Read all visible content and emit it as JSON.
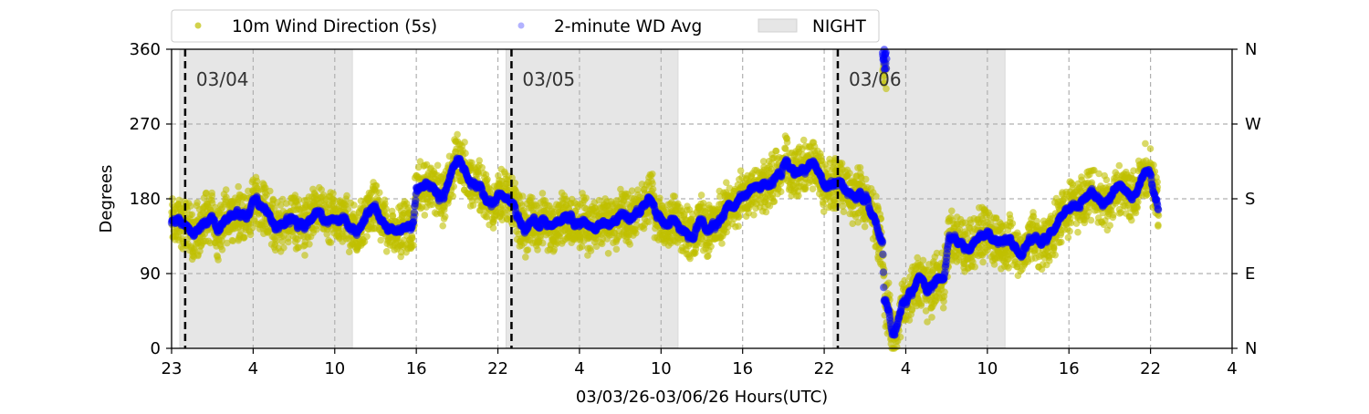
{
  "chart_data": {
    "type": "scatter",
    "xlabel": "03/03/26-03/06/26  Hours(UTC)",
    "ylabel": "Degrees",
    "x_unit": "hours since axis start",
    "xlim": [
      0,
      78
    ],
    "ylim": [
      0,
      360
    ],
    "x_ticks": [
      0,
      6,
      12,
      18,
      24,
      30,
      36,
      42,
      48,
      54,
      60,
      66,
      72,
      78
    ],
    "x_tick_labels": [
      "23",
      "4",
      "10",
      "16",
      "22",
      "4",
      "10",
      "16",
      "22",
      "4",
      "10",
      "16",
      "22",
      "4"
    ],
    "y_ticks": [
      0,
      90,
      180,
      270,
      360
    ],
    "y_tick_labels": [
      "0",
      "90",
      "180",
      "270",
      "360"
    ],
    "y2_tick_labels": [
      "N",
      "E",
      "S",
      "W",
      "N"
    ],
    "grid": true,
    "legend": {
      "placement": "top",
      "entries": [
        {
          "label": "10m Wind Direction (5s)",
          "color": "#bfbf00",
          "kind": "marker"
        },
        {
          "label": "2-minute WD Avg",
          "color": "#0000ff",
          "kind": "marker"
        },
        {
          "label": "NIGHT",
          "color": "#e6e6e6",
          "kind": "patch"
        }
      ]
    },
    "night_periods": [
      [
        0.6,
        13.3
      ],
      [
        24.6,
        37.25
      ],
      [
        48.65,
        61.3
      ]
    ],
    "midnight_lines": [
      {
        "hour": 1,
        "label": "03/04"
      },
      {
        "hour": 25,
        "label": "03/05"
      },
      {
        "hour": 49,
        "label": "03/06"
      }
    ],
    "series": [
      {
        "name": "10m Wind Direction (5s)",
        "color": "#bfbf00",
        "spread_deg": 28
      },
      {
        "name": "2-minute WD Avg",
        "color": "#0000ff",
        "spread_deg": 9
      }
    ],
    "avg_trend": [
      [
        0,
        150
      ],
      [
        1,
        148
      ],
      [
        3,
        150
      ],
      [
        5,
        155
      ],
      [
        6,
        175
      ],
      [
        7,
        165
      ],
      [
        8,
        150
      ],
      [
        10,
        148
      ],
      [
        11,
        155
      ],
      [
        12,
        150
      ],
      [
        13,
        145
      ],
      [
        14,
        150
      ],
      [
        15,
        165
      ],
      [
        16,
        145
      ],
      [
        17,
        140
      ],
      [
        17.8,
        150
      ],
      [
        18,
        190
      ],
      [
        19,
        195
      ],
      [
        20,
        190
      ],
      [
        21,
        220
      ],
      [
        22,
        210
      ],
      [
        23,
        180
      ],
      [
        24,
        185
      ],
      [
        25,
        165
      ],
      [
        26,
        150
      ],
      [
        27,
        145
      ],
      [
        28,
        155
      ],
      [
        29,
        160
      ],
      [
        30,
        150
      ],
      [
        31,
        145
      ],
      [
        32,
        150
      ],
      [
        33,
        150
      ],
      [
        34,
        165
      ],
      [
        35,
        170
      ],
      [
        36,
        160
      ],
      [
        37,
        150
      ],
      [
        38,
        140
      ],
      [
        39,
        145
      ],
      [
        40,
        150
      ],
      [
        41,
        165
      ],
      [
        42,
        185
      ],
      [
        43,
        190
      ],
      [
        44,
        205
      ],
      [
        45,
        215
      ],
      [
        46,
        220
      ],
      [
        47,
        215
      ],
      [
        48,
        205
      ],
      [
        49,
        195
      ],
      [
        50,
        190
      ],
      [
        51,
        175
      ],
      [
        52,
        140
      ],
      [
        52.3,
        130
      ],
      [
        52.4,
        60
      ],
      [
        52.8,
        40
      ],
      [
        53.0,
        10
      ],
      [
        53.3,
        20
      ],
      [
        53.8,
        50
      ],
      [
        54.5,
        70
      ],
      [
        55,
        80
      ],
      [
        55.5,
        65
      ],
      [
        56.3,
        90
      ],
      [
        56.8,
        85
      ],
      [
        57.2,
        125
      ],
      [
        58,
        130
      ],
      [
        59,
        125
      ],
      [
        60,
        140
      ],
      [
        61,
        130
      ],
      [
        62,
        120
      ],
      [
        63,
        125
      ],
      [
        64,
        135
      ],
      [
        65,
        145
      ],
      [
        66,
        170
      ],
      [
        67,
        180
      ],
      [
        68,
        185
      ],
      [
        69,
        180
      ],
      [
        70,
        190
      ],
      [
        71,
        195
      ],
      [
        72,
        205
      ],
      [
        72.5,
        180
      ],
      [
        72.6,
        170
      ]
    ],
    "wrap_segment": {
      "hours": [
        52.3,
        52.6
      ],
      "deg": [
        335,
        360
      ]
    }
  }
}
